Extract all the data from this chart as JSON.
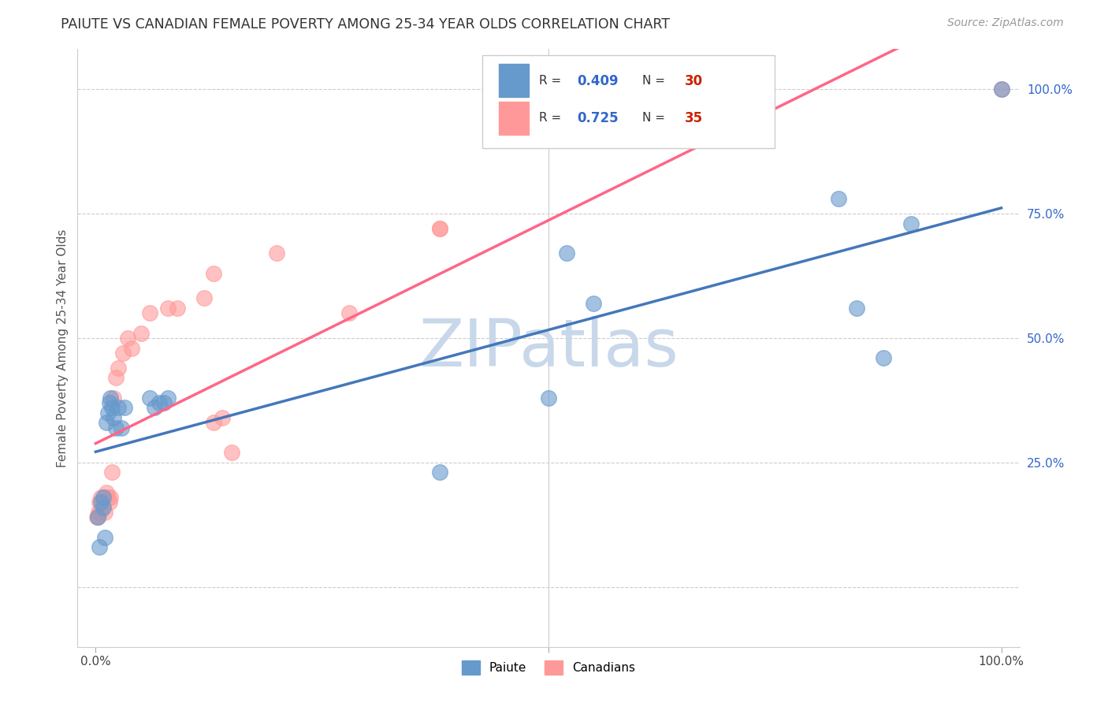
{
  "title": "PAIUTE VS CANADIAN FEMALE POVERTY AMONG 25-34 YEAR OLDS CORRELATION CHART",
  "source": "Source: ZipAtlas.com",
  "ylabel": "Female Poverty Among 25-34 Year Olds",
  "xlim": [
    -0.02,
    1.02
  ],
  "ylim": [
    -0.12,
    1.08
  ],
  "ytick_positions": [
    0.0,
    0.25,
    0.5,
    0.75,
    1.0
  ],
  "ytick_labels_right": [
    "",
    "25.0%",
    "50.0%",
    "75.0%",
    "100.0%"
  ],
  "xtick_positions": [
    0.0,
    0.5,
    1.0
  ],
  "xtick_labels": [
    "0.0%",
    "",
    "100.0%"
  ],
  "paiute_color": "#6699CC",
  "canadian_color": "#FF9999",
  "paiute_line_color": "#4477BB",
  "canadian_line_color": "#FF6688",
  "paiute_line_dash_color": "#AABBDD",
  "paiute_R": 0.409,
  "paiute_N": 30,
  "canadian_R": 0.725,
  "canadian_N": 35,
  "legend_label_paiute": "Paiute",
  "legend_label_canadian": "Canadians",
  "r_color": "#3366CC",
  "n_color": "#CC2200",
  "watermark": "ZIPatlas",
  "watermark_color": "#C8D8EA",
  "paiute_x": [
    0.002,
    0.006,
    0.008,
    0.008,
    0.012,
    0.014,
    0.015,
    0.016,
    0.018,
    0.02,
    0.022,
    0.025,
    0.028,
    0.032,
    0.06,
    0.065,
    0.07,
    0.075,
    0.08,
    0.5,
    0.52,
    0.82,
    0.84,
    0.87,
    0.9,
    1.0,
    0.004,
    0.01,
    0.38,
    0.55
  ],
  "paiute_y": [
    0.14,
    0.17,
    0.16,
    0.18,
    0.33,
    0.35,
    0.37,
    0.38,
    0.36,
    0.34,
    0.32,
    0.36,
    0.32,
    0.36,
    0.38,
    0.36,
    0.37,
    0.37,
    0.38,
    0.38,
    0.67,
    0.78,
    0.56,
    0.46,
    0.73,
    1.0,
    0.08,
    0.1,
    0.23,
    0.57
  ],
  "canadian_x": [
    0.001,
    0.002,
    0.003,
    0.004,
    0.006,
    0.008,
    0.009,
    0.01,
    0.012,
    0.014,
    0.015,
    0.016,
    0.018,
    0.02,
    0.022,
    0.025,
    0.03,
    0.035,
    0.04,
    0.05,
    0.06,
    0.08,
    0.09,
    0.12,
    0.13,
    0.2,
    0.38,
    1.0,
    0.005,
    0.007,
    0.13,
    0.14,
    0.15,
    0.28,
    0.38
  ],
  "canadian_y": [
    0.14,
    0.14,
    0.15,
    0.17,
    0.18,
    0.17,
    0.18,
    0.15,
    0.19,
    0.18,
    0.17,
    0.18,
    0.23,
    0.38,
    0.42,
    0.44,
    0.47,
    0.5,
    0.48,
    0.51,
    0.55,
    0.56,
    0.56,
    0.58,
    0.63,
    0.67,
    0.72,
    1.0,
    0.15,
    0.16,
    0.33,
    0.34,
    0.27,
    0.55,
    0.72
  ],
  "grid_color": "#CCCCCC",
  "spine_color": "#CCCCCC"
}
